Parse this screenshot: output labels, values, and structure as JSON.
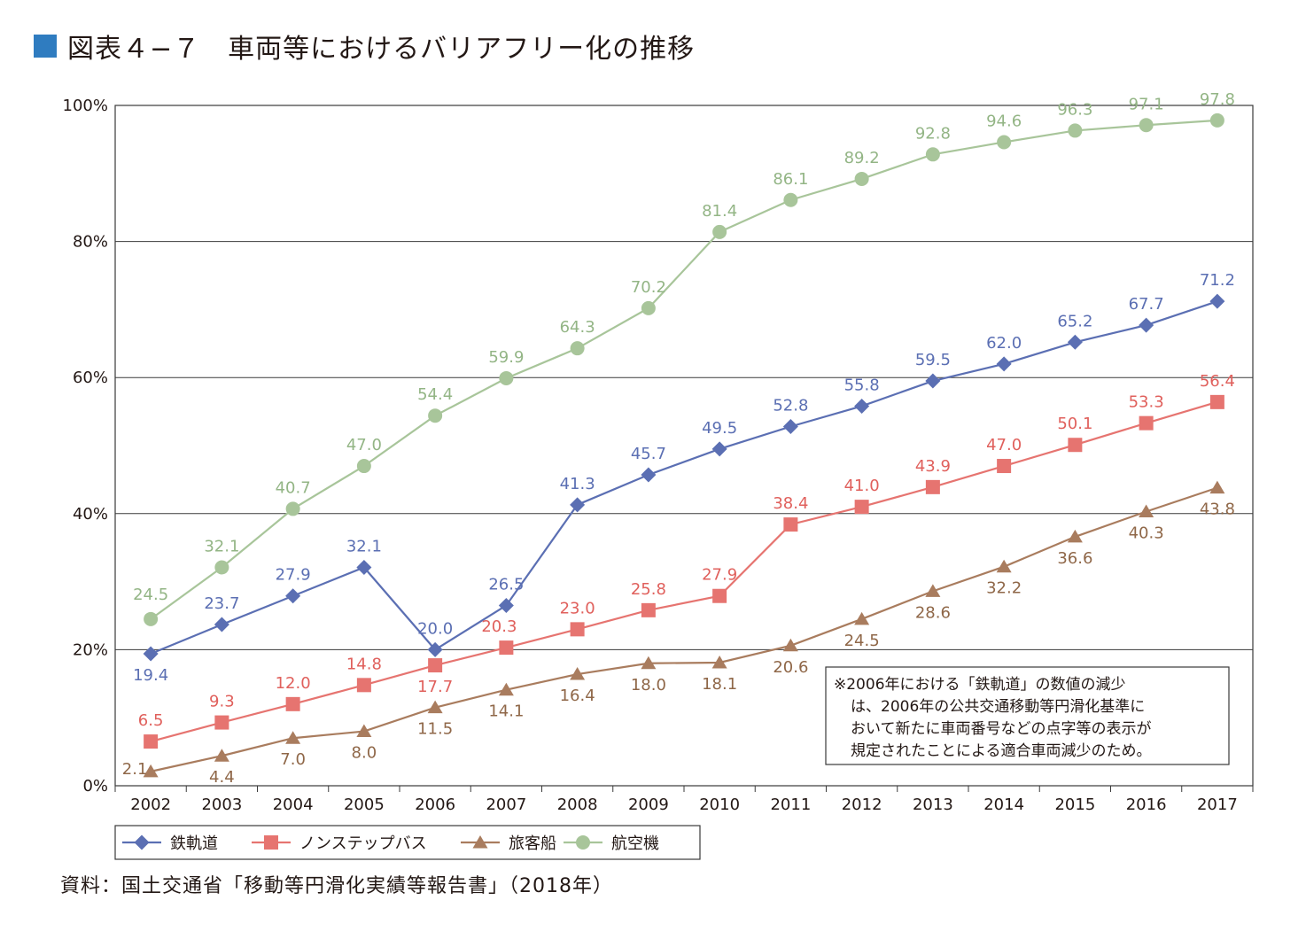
{
  "title": "図表４−７　車両等におけるバリアフリー化の推移",
  "source": "資料：国土交通省「移動等円滑化実績等報告書」（2018年）",
  "note_lines": [
    "※2006年における「鉄軌道」の数値の減少",
    "は、2006年の公共交通移動等円滑化基準に",
    "おいて新たに車両番号などの点字等の表示が",
    "規定されたことによる適合車両減少のため。"
  ],
  "chart_data": {
    "type": "line",
    "title": "",
    "xlabel": "",
    "ylabel": "",
    "ylim": [
      0,
      100
    ],
    "yticks": [
      "0%",
      "20%",
      "40%",
      "60%",
      "80%",
      "100%"
    ],
    "grid": true,
    "legend_position": "bottom-left",
    "x": [
      "2002",
      "2003",
      "2004",
      "2005",
      "2006",
      "2007",
      "2008",
      "2009",
      "2010",
      "2011",
      "2012",
      "2013",
      "2014",
      "2015",
      "2016",
      "2017"
    ],
    "series": [
      {
        "name": "鉄軌道",
        "marker": "diamond",
        "color": "#5b6fb3",
        "label_color": "#5b6fb3",
        "values": [
          19.4,
          23.7,
          27.9,
          32.1,
          20.0,
          26.5,
          41.3,
          45.7,
          49.5,
          52.8,
          55.8,
          59.5,
          62.0,
          65.2,
          67.7,
          71.2
        ],
        "labels": [
          "19.4",
          "23.7",
          "27.9",
          "32.1",
          "20.0",
          "26.5",
          "41.3",
          "45.7",
          "49.5",
          "52.8",
          "55.8",
          "59.5",
          "62.0",
          "65.2",
          "67.7",
          "71.2"
        ]
      },
      {
        "name": "ノンステップバス",
        "marker": "square",
        "color": "#e67470",
        "label_color": "#e0605c",
        "values": [
          6.5,
          9.3,
          12.0,
          14.8,
          17.7,
          20.3,
          23.0,
          25.8,
          27.9,
          38.4,
          41.0,
          43.9,
          47.0,
          50.1,
          53.3,
          56.4
        ],
        "labels": [
          "6.5",
          "9.3",
          "12.0",
          "14.8",
          "17.7",
          "20.3",
          "23.0",
          "25.8",
          "27.9",
          "38.4",
          "41.0",
          "43.9",
          "47.0",
          "50.1",
          "53.3",
          "56.4"
        ]
      },
      {
        "name": "旅客船",
        "marker": "triangle",
        "color": "#a97c5e",
        "label_color": "#8f6748",
        "values": [
          2.1,
          4.4,
          7.0,
          8.0,
          11.5,
          14.1,
          16.4,
          18.0,
          18.1,
          20.6,
          24.5,
          28.6,
          32.2,
          36.6,
          40.3,
          43.8
        ],
        "labels": [
          "2.1",
          "4.4",
          "7.0",
          "8.0",
          "11.5",
          "14.1",
          "16.4",
          "18.0",
          "18.1",
          "20.6",
          "24.5",
          "28.6",
          "32.2",
          "36.6",
          "40.3",
          "43.8"
        ]
      },
      {
        "name": "航空機",
        "marker": "circle",
        "color": "#a8c59a",
        "label_color": "#93b585",
        "values": [
          24.5,
          32.1,
          40.7,
          47.0,
          54.4,
          59.9,
          64.3,
          70.2,
          81.4,
          86.1,
          89.2,
          92.8,
          94.6,
          96.3,
          97.1,
          97.8
        ],
        "labels": [
          "24.5",
          "32.1",
          "40.7",
          "47.0",
          "54.4",
          "59.9",
          "64.3",
          "70.2",
          "81.4",
          "86.1",
          "89.2",
          "92.8",
          "94.6",
          "96.3",
          "97.1",
          "97.8"
        ]
      }
    ]
  }
}
